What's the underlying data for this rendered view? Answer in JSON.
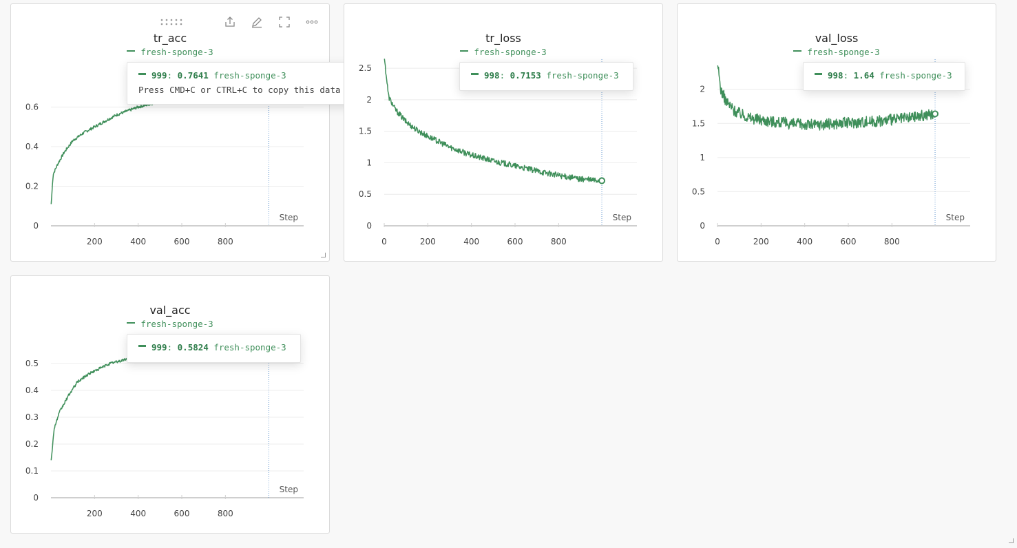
{
  "colors": {
    "series": "#3f8f5a",
    "grid": "#ececec",
    "axis": "#cfcfcf"
  },
  "toolbar": {
    "drag_icon": "drag-handle-icon",
    "share_icon": "share-icon",
    "edit_icon": "pencil-icon",
    "fullscreen_icon": "fullscreen-icon",
    "more_icon": "more-icon"
  },
  "panels": [
    {
      "title": "tr_acc",
      "legend": "fresh-sponge-3",
      "tooltip": {
        "step": "999",
        "sep": ": ",
        "value": "0.7641",
        "run": "fresh-sponge-3",
        "hint": "Press CMD+C or CTRL+C to copy this data"
      },
      "step_label": "Step"
    },
    {
      "title": "tr_loss",
      "legend": "fresh-sponge-3",
      "tooltip": {
        "step": "998",
        "sep": ": ",
        "value": "0.7153",
        "run": "fresh-sponge-3"
      },
      "step_label": "Step"
    },
    {
      "title": "val_loss",
      "legend": "fresh-sponge-3",
      "tooltip": {
        "step": "998",
        "sep": ": ",
        "value": "1.64",
        "run": "fresh-sponge-3"
      },
      "step_label": "Step"
    },
    {
      "title": "val_acc",
      "legend": "fresh-sponge-3",
      "tooltip": {
        "step": "999",
        "sep": ": ",
        "value": "0.5824",
        "run": "fresh-sponge-3"
      },
      "step_label": "Step"
    }
  ],
  "chart_data": [
    {
      "type": "line",
      "title": "tr_acc",
      "xlabel": "Step",
      "ylabel": "",
      "xlim": [
        0,
        1000
      ],
      "ylim": [
        0,
        0.8
      ],
      "grid": true,
      "x_ticks": [
        200,
        400,
        600,
        800
      ],
      "y_ticks": [
        "0",
        "0.2",
        "0.4",
        "0.6"
      ],
      "y_tick_values": [
        0,
        0.2,
        0.4,
        0.6
      ],
      "series": [
        {
          "name": "fresh-sponge-3",
          "x": [
            1,
            10,
            30,
            60,
            100,
            150,
            200,
            250,
            300,
            350,
            400,
            999
          ],
          "y": [
            0.11,
            0.26,
            0.31,
            0.37,
            0.43,
            0.47,
            0.5,
            0.53,
            0.56,
            0.58,
            0.6,
            0.7641
          ]
        }
      ]
    },
    {
      "type": "line",
      "title": "tr_loss",
      "xlabel": "Step",
      "ylabel": "",
      "xlim": [
        0,
        1000
      ],
      "ylim": [
        0,
        2.6
      ],
      "grid": true,
      "x_ticks": [
        0,
        200,
        400,
        600,
        800
      ],
      "y_ticks": [
        "0",
        "0.5",
        "1",
        "1.5",
        "2",
        "2.5"
      ],
      "y_tick_values": [
        0,
        0.5,
        1,
        1.5,
        2,
        2.5
      ],
      "series": [
        {
          "name": "fresh-sponge-3",
          "x": [
            1,
            20,
            50,
            100,
            150,
            200,
            300,
            400,
            500,
            600,
            700,
            800,
            900,
            998
          ],
          "y": [
            2.65,
            2.05,
            1.85,
            1.65,
            1.52,
            1.42,
            1.25,
            1.12,
            1.03,
            0.95,
            0.87,
            0.8,
            0.74,
            0.7153
          ]
        }
      ]
    },
    {
      "type": "line",
      "title": "val_loss",
      "xlabel": "Step",
      "ylabel": "",
      "xlim": [
        0,
        1000
      ],
      "ylim": [
        0,
        2.4
      ],
      "grid": true,
      "x_ticks": [
        0,
        200,
        400,
        600,
        800
      ],
      "y_ticks": [
        "0",
        "0.5",
        "1",
        "1.5",
        "2"
      ],
      "y_tick_values": [
        0,
        0.5,
        1,
        1.5,
        2
      ],
      "series": [
        {
          "name": "fresh-sponge-3",
          "x": [
            1,
            15,
            40,
            80,
            150,
            250,
            350,
            450,
            550,
            650,
            750,
            850,
            950,
            998
          ],
          "y": [
            2.35,
            2.0,
            1.82,
            1.68,
            1.58,
            1.53,
            1.49,
            1.48,
            1.5,
            1.52,
            1.54,
            1.57,
            1.62,
            1.64
          ]
        }
      ]
    },
    {
      "type": "line",
      "title": "val_acc",
      "xlabel": "Step",
      "ylabel": "",
      "xlim": [
        0,
        1000
      ],
      "ylim": [
        0,
        0.6
      ],
      "grid": true,
      "x_ticks": [
        200,
        400,
        600,
        800
      ],
      "y_ticks": [
        "0",
        "0.1",
        "0.2",
        "0.3",
        "0.4",
        "0.5"
      ],
      "y_tick_values": [
        0,
        0.1,
        0.2,
        0.3,
        0.4,
        0.5
      ],
      "series": [
        {
          "name": "fresh-sponge-3",
          "x": [
            1,
            15,
            40,
            80,
            120,
            170,
            220,
            270,
            320,
            400,
            999
          ],
          "y": [
            0.14,
            0.26,
            0.32,
            0.38,
            0.43,
            0.46,
            0.48,
            0.5,
            0.51,
            0.53,
            0.5824
          ]
        }
      ]
    }
  ]
}
